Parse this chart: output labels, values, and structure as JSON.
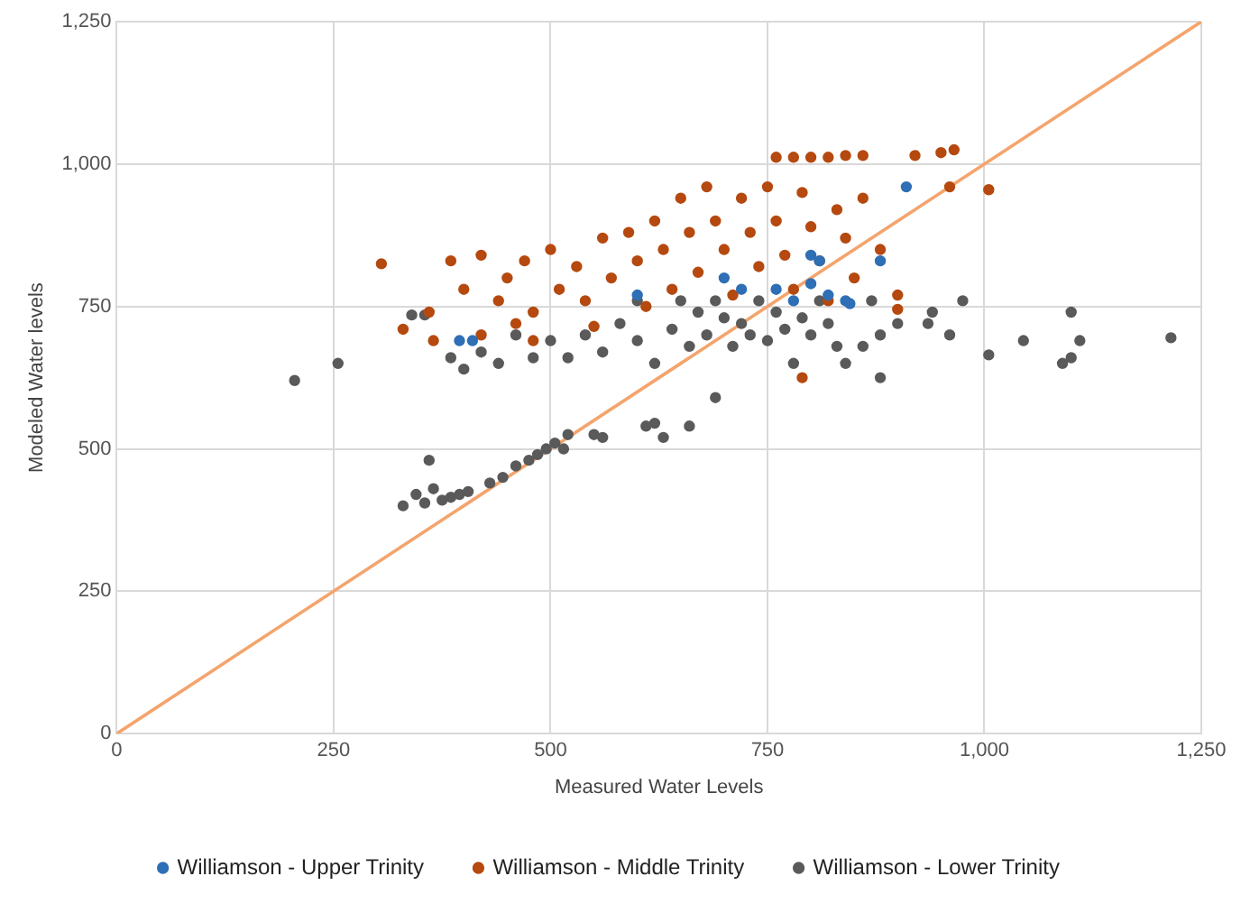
{
  "chart_data": {
    "type": "scatter",
    "xlabel": "Measured Water Levels",
    "ylabel": "Modeled Water levels",
    "xlim": [
      0,
      1250
    ],
    "ylim": [
      0,
      1250
    ],
    "xticks": [
      0,
      250,
      500,
      750,
      {
        "value": 1000,
        "label": "1,000"
      },
      {
        "value": 1250,
        "label": "1,250"
      }
    ],
    "yticks": [
      0,
      250,
      500,
      750,
      {
        "value": 1000,
        "label": "1,000"
      },
      {
        "value": 1250,
        "label": "1,250"
      }
    ],
    "grid": true,
    "legend": "bottom",
    "marker": "circle",
    "series": [
      {
        "name": "Williamson - Upper Trinity",
        "color": "#2e6fb5",
        "x": [
          395,
          410,
          600,
          700,
          720,
          760,
          780,
          800,
          810,
          820,
          840,
          845,
          880,
          910,
          800
        ],
        "values": [
          690,
          690,
          770,
          800,
          780,
          780,
          760,
          790,
          830,
          770,
          760,
          755,
          830,
          960,
          840
        ]
      },
      {
        "name": "Williamson - Middle Trinity",
        "color": "#b5490f",
        "x": [
          305,
          330,
          385,
          400,
          420,
          440,
          450,
          470,
          480,
          500,
          510,
          530,
          540,
          560,
          570,
          590,
          600,
          610,
          620,
          630,
          640,
          650,
          660,
          670,
          680,
          690,
          700,
          710,
          720,
          730,
          740,
          750,
          760,
          770,
          780,
          790,
          800,
          810,
          820,
          830,
          840,
          850,
          860,
          880,
          900,
          760,
          780,
          800,
          820,
          840,
          860,
          920,
          950,
          965,
          1005,
          960,
          900,
          790,
          550,
          460,
          420,
          480,
          360,
          365
        ],
        "values": [
          825,
          710,
          830,
          780,
          840,
          760,
          800,
          830,
          740,
          850,
          780,
          820,
          760,
          870,
          800,
          880,
          830,
          750,
          900,
          850,
          780,
          940,
          880,
          810,
          960,
          900,
          850,
          770,
          940,
          880,
          820,
          960,
          900,
          840,
          780,
          950,
          890,
          830,
          760,
          920,
          870,
          800,
          940,
          850,
          770,
          1012,
          1012,
          1012,
          1012,
          1015,
          1015,
          1015,
          1020,
          1025,
          955,
          960,
          745,
          625,
          715,
          720,
          700,
          690,
          740,
          690
        ]
      },
      {
        "name": "Williamson - Lower Trinity",
        "color": "#5a5a5a",
        "x": [
          205,
          255,
          330,
          345,
          355,
          365,
          375,
          385,
          395,
          405,
          360,
          430,
          445,
          460,
          475,
          485,
          495,
          505,
          515,
          520,
          550,
          560,
          610,
          620,
          630,
          660,
          690,
          385,
          400,
          420,
          440,
          460,
          480,
          500,
          520,
          540,
          560,
          580,
          600,
          620,
          640,
          660,
          670,
          680,
          690,
          700,
          710,
          720,
          730,
          740,
          750,
          760,
          770,
          780,
          790,
          800,
          810,
          820,
          830,
          840,
          860,
          880,
          900,
          940,
          960,
          975,
          935,
          1005,
          1045,
          1090,
          1100,
          1100,
          1110,
          1215,
          340,
          355,
          600,
          650,
          880,
          870
        ],
        "values": [
          620,
          650,
          400,
          420,
          405,
          430,
          410,
          415,
          420,
          425,
          480,
          440,
          450,
          470,
          480,
          490,
          500,
          510,
          500,
          525,
          525,
          520,
          540,
          545,
          520,
          540,
          590,
          660,
          640,
          670,
          650,
          700,
          660,
          690,
          660,
          700,
          670,
          720,
          690,
          650,
          710,
          680,
          740,
          700,
          760,
          730,
          680,
          720,
          700,
          760,
          690,
          740,
          710,
          650,
          730,
          700,
          760,
          720,
          680,
          650,
          680,
          700,
          720,
          740,
          700,
          760,
          720,
          665,
          690,
          650,
          660,
          740,
          690,
          695,
          735,
          735,
          760,
          760,
          625,
          760
        ]
      },
      {
        "type": "line",
        "marker": "none",
        "color": "#f4a46c",
        "x": [
          0,
          1250
        ],
        "values": [
          0,
          1250
        ]
      }
    ]
  }
}
